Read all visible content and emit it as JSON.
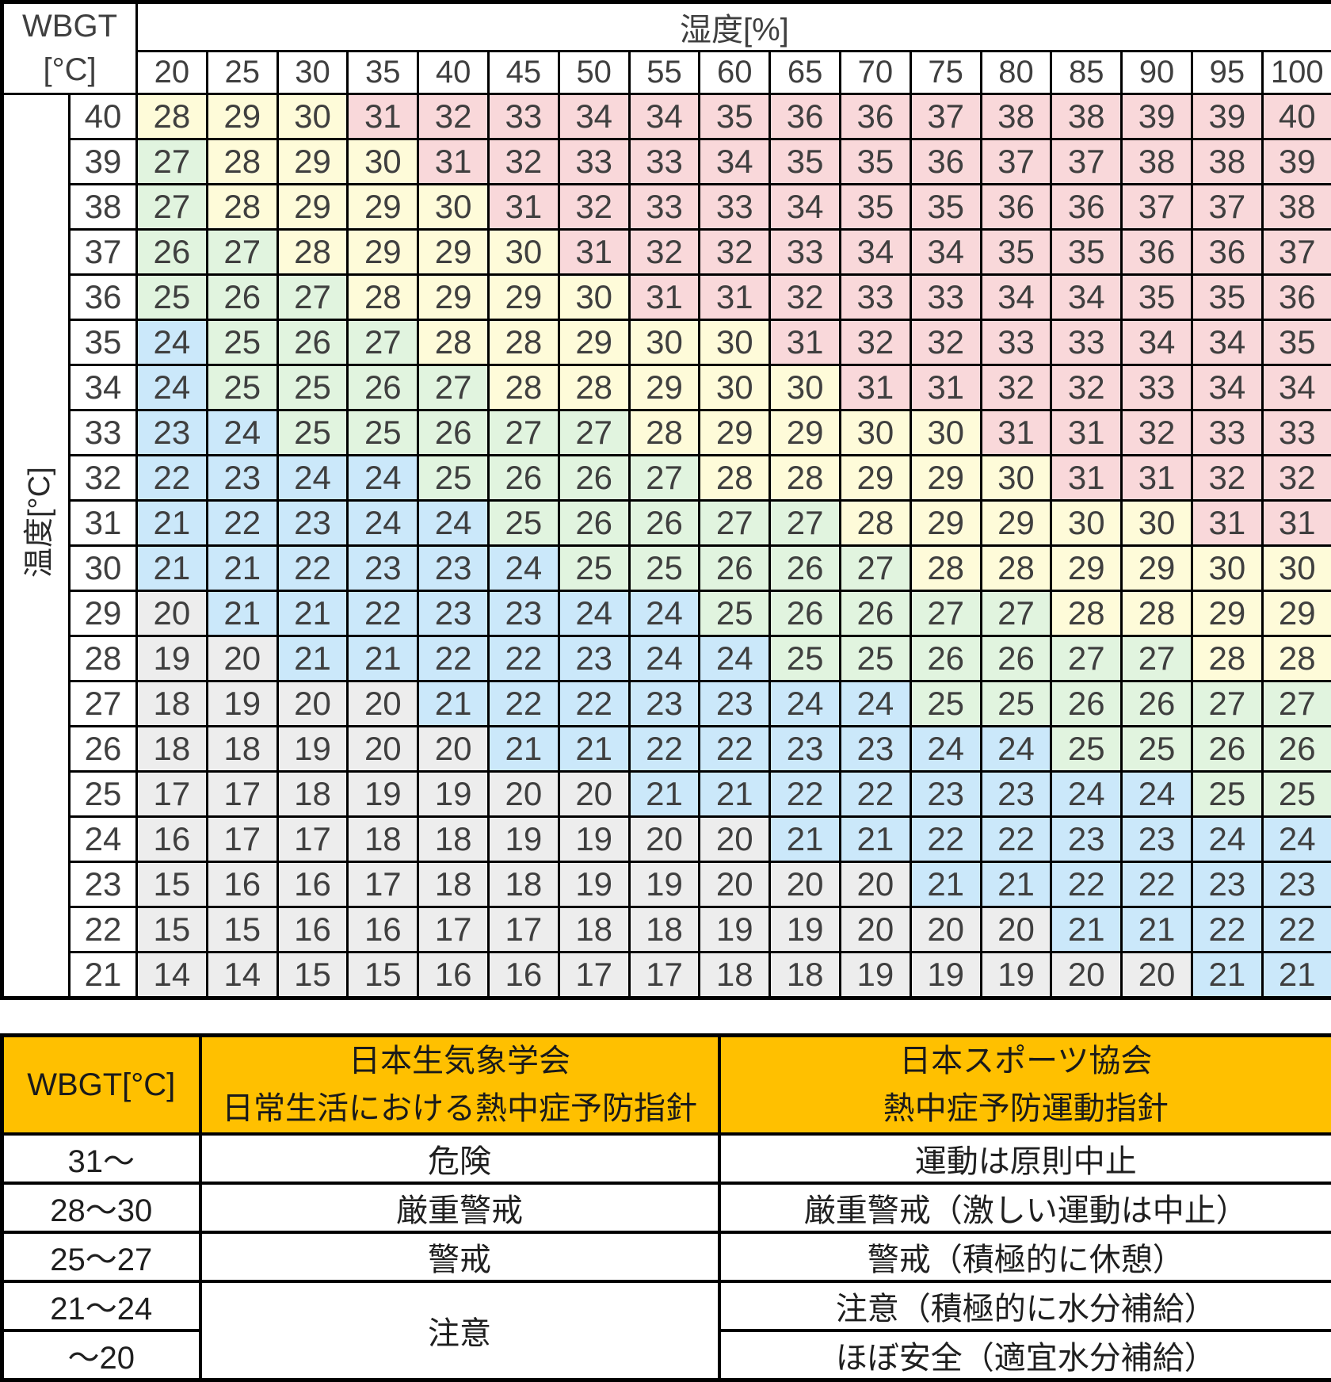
{
  "chart_data": {
    "type": "heatmap",
    "title": "WBGT[°C]",
    "corner_label_line1": "WBGT",
    "corner_label_line2": "[°C]",
    "xlabel": "湿度[%]",
    "ylabel": "温度[°C]",
    "x": [
      20,
      25,
      30,
      35,
      40,
      45,
      50,
      55,
      60,
      65,
      70,
      75,
      80,
      85,
      90,
      95,
      100
    ],
    "y": [
      40,
      39,
      38,
      37,
      36,
      35,
      34,
      33,
      32,
      31,
      30,
      29,
      28,
      27,
      26,
      25,
      24,
      23,
      22,
      21
    ],
    "values": [
      [
        28,
        29,
        30,
        31,
        32,
        33,
        34,
        34,
        35,
        36,
        36,
        37,
        38,
        38,
        39,
        39,
        40
      ],
      [
        27,
        28,
        29,
        30,
        31,
        32,
        33,
        33,
        34,
        35,
        35,
        36,
        37,
        37,
        38,
        38,
        39
      ],
      [
        27,
        28,
        29,
        29,
        30,
        31,
        32,
        33,
        33,
        34,
        35,
        35,
        36,
        36,
        37,
        37,
        38
      ],
      [
        26,
        27,
        28,
        29,
        29,
        30,
        31,
        32,
        32,
        33,
        34,
        34,
        35,
        35,
        36,
        36,
        37
      ],
      [
        25,
        26,
        27,
        28,
        29,
        29,
        30,
        31,
        31,
        32,
        33,
        33,
        34,
        34,
        35,
        35,
        36
      ],
      [
        24,
        25,
        26,
        27,
        28,
        28,
        29,
        30,
        30,
        31,
        32,
        32,
        33,
        33,
        34,
        34,
        35
      ],
      [
        24,
        25,
        25,
        26,
        27,
        28,
        28,
        29,
        30,
        30,
        31,
        31,
        32,
        32,
        33,
        34,
        34
      ],
      [
        23,
        24,
        25,
        25,
        26,
        27,
        27,
        28,
        29,
        29,
        30,
        30,
        31,
        31,
        32,
        33,
        33
      ],
      [
        22,
        23,
        24,
        24,
        25,
        26,
        26,
        27,
        28,
        28,
        29,
        29,
        30,
        31,
        31,
        32,
        32
      ],
      [
        21,
        22,
        23,
        24,
        24,
        25,
        26,
        26,
        27,
        27,
        28,
        29,
        29,
        30,
        30,
        31,
        31
      ],
      [
        21,
        21,
        22,
        23,
        23,
        24,
        25,
        25,
        26,
        26,
        27,
        28,
        28,
        29,
        29,
        30,
        30
      ],
      [
        20,
        21,
        21,
        22,
        23,
        23,
        24,
        24,
        25,
        26,
        26,
        27,
        27,
        28,
        28,
        29,
        29
      ],
      [
        19,
        20,
        21,
        21,
        22,
        22,
        23,
        24,
        24,
        25,
        25,
        26,
        26,
        27,
        27,
        28,
        28
      ],
      [
        18,
        19,
        20,
        20,
        21,
        22,
        22,
        23,
        23,
        24,
        24,
        25,
        25,
        26,
        26,
        27,
        27
      ],
      [
        18,
        18,
        19,
        20,
        20,
        21,
        21,
        22,
        22,
        23,
        23,
        24,
        24,
        25,
        25,
        26,
        26
      ],
      [
        17,
        17,
        18,
        19,
        19,
        20,
        20,
        21,
        21,
        22,
        22,
        23,
        23,
        24,
        24,
        25,
        25
      ],
      [
        16,
        17,
        17,
        18,
        18,
        19,
        19,
        20,
        20,
        21,
        21,
        22,
        22,
        23,
        23,
        24,
        24
      ],
      [
        15,
        16,
        16,
        17,
        18,
        18,
        19,
        19,
        20,
        20,
        20,
        21,
        21,
        22,
        22,
        23,
        23
      ],
      [
        15,
        15,
        16,
        16,
        17,
        17,
        18,
        18,
        19,
        19,
        20,
        20,
        20,
        21,
        21,
        22,
        22
      ],
      [
        14,
        14,
        15,
        15,
        16,
        16,
        17,
        17,
        18,
        18,
        19,
        19,
        19,
        20,
        20,
        21,
        21
      ]
    ],
    "legend_position": "bottom",
    "grid": true
  },
  "color_scale": [
    {
      "name": "danger",
      "range_label": "31～",
      "min": 31,
      "max": null,
      "color": "#F9D8DA"
    },
    {
      "name": "severe",
      "range_label": "28～30",
      "min": 28,
      "max": 30,
      "color": "#FEFBD9"
    },
    {
      "name": "warning",
      "range_label": "25～27",
      "min": 25,
      "max": 27,
      "color": "#E1F4DF"
    },
    {
      "name": "caution",
      "range_label": "21～24",
      "min": 21,
      "max": 24,
      "color": "#CBE8FA"
    },
    {
      "name": "safe",
      "range_label": "～20",
      "min": null,
      "max": 20,
      "color": "#EDEDED"
    }
  ],
  "header_color": "#FFC000",
  "legend_table": {
    "header": {
      "wbgt": "WBGT[°C]",
      "daily_org": "日本生気象学会",
      "daily_title": "日常生活における熱中症予防指針",
      "sport_org": "日本スポーツ協会",
      "sport_title": "熱中症予防運動指針"
    },
    "rows": [
      {
        "range": "31～",
        "level": "danger",
        "daily": "危険",
        "sport": "運動は原則中止"
      },
      {
        "range": "28～30",
        "level": "severe",
        "daily": "厳重警戒",
        "sport": "厳重警戒（激しい運動は中止）"
      },
      {
        "range": "25～27",
        "level": "warning",
        "daily": "警戒",
        "sport": "警戒（積極的に休憩）"
      },
      {
        "range": "21～24",
        "level": "caution",
        "daily": "注意",
        "daily_rowspan": 2,
        "sport": "注意（積極的に水分補給）"
      },
      {
        "range": "～20",
        "level": "safe",
        "daily": null,
        "sport": "ほぼ安全（適宜水分補給）"
      }
    ]
  }
}
